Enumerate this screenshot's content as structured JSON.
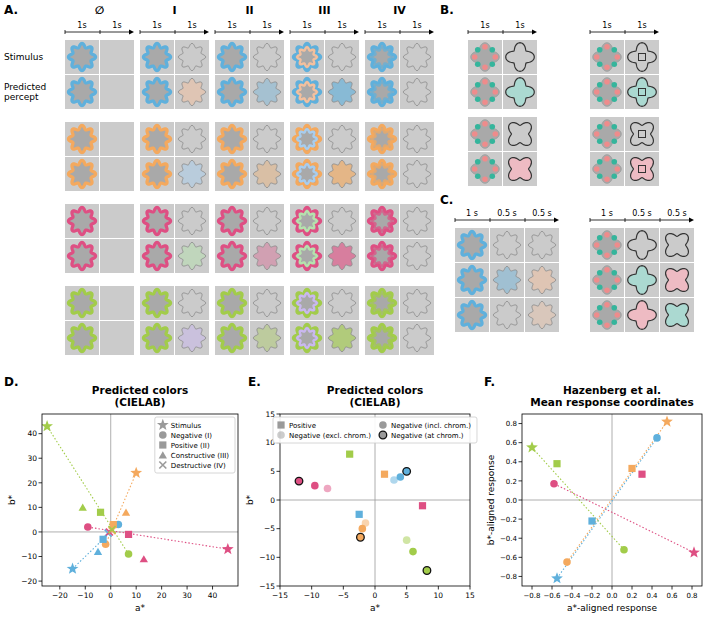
{
  "panels": {
    "A": {
      "letter": "A.",
      "columns": [
        "∅",
        "I",
        "II",
        "III",
        "IV"
      ],
      "durations": [
        "1s",
        "1s"
      ],
      "row_labels": [
        "Stimulus",
        "Predicted percept"
      ],
      "groups": [
        {
          "color": "#5fb0dc",
          "complement": "#f3c09e"
        },
        {
          "color": "#f4a95e",
          "complement": "#a8cdee"
        },
        {
          "color": "#de4f83",
          "complement": "#b5e2ad"
        },
        {
          "color": "#a2cc4a",
          "complement": "#c9b8ef"
        }
      ]
    },
    "B": {
      "letter": "B.",
      "durations": [
        "1s",
        "1s"
      ],
      "dot_colors": [
        "#ee8c8c",
        "#35b59c"
      ],
      "percept_colors": [
        "#a6dcd2",
        "#f4b9c2"
      ]
    },
    "C": {
      "letter": "C.",
      "durations": [
        "1 s",
        "0.5 s",
        "0.5 s"
      ]
    },
    "D": {
      "letter": "D."
    },
    "E": {
      "letter": "E."
    },
    "F": {
      "letter": "F."
    }
  },
  "chart_data": [
    {
      "type": "scatter",
      "title": "Predicted colors\n(CIELAB)",
      "x_label": "a*",
      "y_label": "b*",
      "xlim": [
        -27,
        50
      ],
      "ylim": [
        -22,
        48
      ],
      "xticks": [
        {
          "value": -20,
          "label": "−20"
        },
        {
          "value": -10,
          "label": "−10"
        },
        0,
        10,
        20,
        30,
        40
      ],
      "yticks": [
        {
          "value": -20,
          "label": "−20"
        },
        {
          "value": -10,
          "label": "−10"
        },
        0,
        10,
        20,
        30,
        40
      ],
      "legend": "upper right",
      "series": [
        {
          "name": "Stimulus",
          "marker": "star",
          "line_style": "dotted",
          "colors": [
            "#5fb0dc",
            "#f4a95e",
            "#de4f83",
            "#a2cc4a"
          ],
          "x": [
            -15,
            10,
            46,
            -25
          ],
          "values": [
            -15,
            24,
            -7,
            43
          ]
        },
        {
          "name": "Negative (I)",
          "marker": "circle",
          "colors": [
            "#5fb0dc",
            "#f4a95e",
            "#de4f83",
            "#a2cc4a"
          ],
          "x": [
            3,
            -2,
            -9,
            7
          ],
          "values": [
            3,
            -5,
            2,
            -9
          ]
        },
        {
          "name": "Positive (II)",
          "marker": "square",
          "colors": [
            "#5fb0dc",
            "#f4a95e",
            "#de4f83",
            "#a2cc4a"
          ],
          "x": [
            -3,
            1,
            7,
            -4
          ],
          "values": [
            -3,
            3,
            -1,
            8
          ]
        },
        {
          "name": "Constructive (III)",
          "marker": "triangle",
          "colors": [
            "#5fb0dc",
            "#f4a95e",
            "#de4f83",
            "#a2cc4a"
          ],
          "x": [
            -5,
            6,
            13,
            -11
          ],
          "values": [
            -8,
            8,
            -11,
            10
          ]
        },
        {
          "name": "Destructive (IV)",
          "marker": "x",
          "colors": [
            "#5fb0dc",
            "#f4a95e",
            "#de4f83",
            "#a2cc4a"
          ],
          "x": [
            -1,
            0.5,
            -0.5,
            0.5
          ],
          "values": [
            -0.5,
            0.5,
            0,
            1
          ]
        }
      ]
    },
    {
      "type": "scatter",
      "title": "Predicted colors\n(CIELAB)",
      "x_label": "a*",
      "y_label": "b*",
      "xlim": [
        -15,
        15
      ],
      "ylim": [
        -15,
        15
      ],
      "xticks": [
        {
          "value": -15,
          "label": "−15"
        },
        {
          "value": -10,
          "label": "−10"
        },
        {
          "value": -5,
          "label": "−5"
        },
        0,
        5,
        10,
        15
      ],
      "yticks": [
        {
          "value": -15,
          "label": "−15"
        },
        {
          "value": -10,
          "label": "−10"
        },
        {
          "value": -5,
          "label": "−5"
        },
        0,
        5,
        10,
        15
      ],
      "legend": "upper center",
      "series": [
        {
          "name": "Positive",
          "marker": "square",
          "colors": [
            "#5fb0dc",
            "#f4a95e",
            "#de4f83",
            "#a2cc4a"
          ],
          "x": [
            -2.5,
            1.5,
            7.5,
            -4
          ],
          "values": [
            -2.5,
            4.5,
            -1,
            8
          ]
        },
        {
          "name": "Negative (incl. chrom.)",
          "marker": "circle",
          "colors": [
            "#5fb0dc",
            "#f4a95e",
            "#de4f83",
            "#a2cc4a"
          ],
          "x": [
            4,
            -2,
            -9.5,
            6
          ],
          "values": [
            4,
            -5,
            2.5,
            -9
          ]
        },
        {
          "name": "Negative (excl. chrom.)",
          "marker": "circle-pale",
          "colors": [
            "#5fb0dc",
            "#f4a95e",
            "#de4f83",
            "#a2cc4a"
          ],
          "x": [
            3,
            -1.5,
            -7.5,
            5
          ],
          "values": [
            3.5,
            -4,
            2,
            -7
          ]
        },
        {
          "name": "Negative (at chrom.)",
          "marker": "circle-edged",
          "colors": [
            "#5fb0dc",
            "#f4a95e",
            "#de4f83",
            "#a2cc4a"
          ],
          "x": [
            5,
            -2.3,
            -12,
            8.2
          ],
          "values": [
            5,
            -6.5,
            3.3,
            -12.3
          ]
        }
      ]
    },
    {
      "type": "scatter",
      "title": "Hazenberg et al.\nMean response coordinates",
      "x_label": "a*-aligned response",
      "y_label": "b*-aligned response",
      "xlim": [
        -0.9,
        0.9
      ],
      "ylim": [
        -0.9,
        0.9
      ],
      "xticks": [
        {
          "value": -0.8,
          "label": "−0.8"
        },
        {
          "value": -0.6,
          "label": "−0.6"
        },
        {
          "value": -0.4,
          "label": "−0.4"
        },
        {
          "value": -0.2,
          "label": "−0.2"
        },
        {
          "value": 0,
          "label": "0.0"
        },
        0.2,
        0.4,
        0.6,
        0.8
      ],
      "yticks": [
        {
          "value": -0.8,
          "label": "−0.8"
        },
        {
          "value": -0.6,
          "label": "−0.6"
        },
        {
          "value": -0.4,
          "label": "−0.4"
        },
        {
          "value": -0.2,
          "label": "−0.2"
        },
        {
          "value": 0,
          "label": "0.0"
        },
        0.2,
        0.4,
        0.6,
        0.8
      ],
      "series": [
        {
          "marker": "star",
          "line_style": "dotted",
          "colors": [
            "#5fb0dc",
            "#f4a95e",
            "#de4f83",
            "#a2cc4a"
          ],
          "x": [
            -0.55,
            0.55,
            0.82,
            -0.8
          ],
          "values": [
            -0.82,
            0.82,
            -0.55,
            0.55
          ]
        },
        {
          "marker": "circle",
          "colors": [
            "#5fb0dc",
            "#f4a95e",
            "#de4f83",
            "#a2cc4a"
          ],
          "x": [
            0.45,
            -0.45,
            -0.58,
            0.12
          ],
          "values": [
            0.65,
            -0.65,
            0.17,
            -0.52
          ]
        },
        {
          "marker": "square",
          "colors": [
            "#5fb0dc",
            "#f4a95e",
            "#de4f83",
            "#a2cc4a"
          ],
          "x": [
            -0.2,
            0.2,
            0.3,
            -0.55
          ],
          "values": [
            -0.22,
            0.33,
            0.27,
            0.38
          ]
        }
      ]
    }
  ]
}
